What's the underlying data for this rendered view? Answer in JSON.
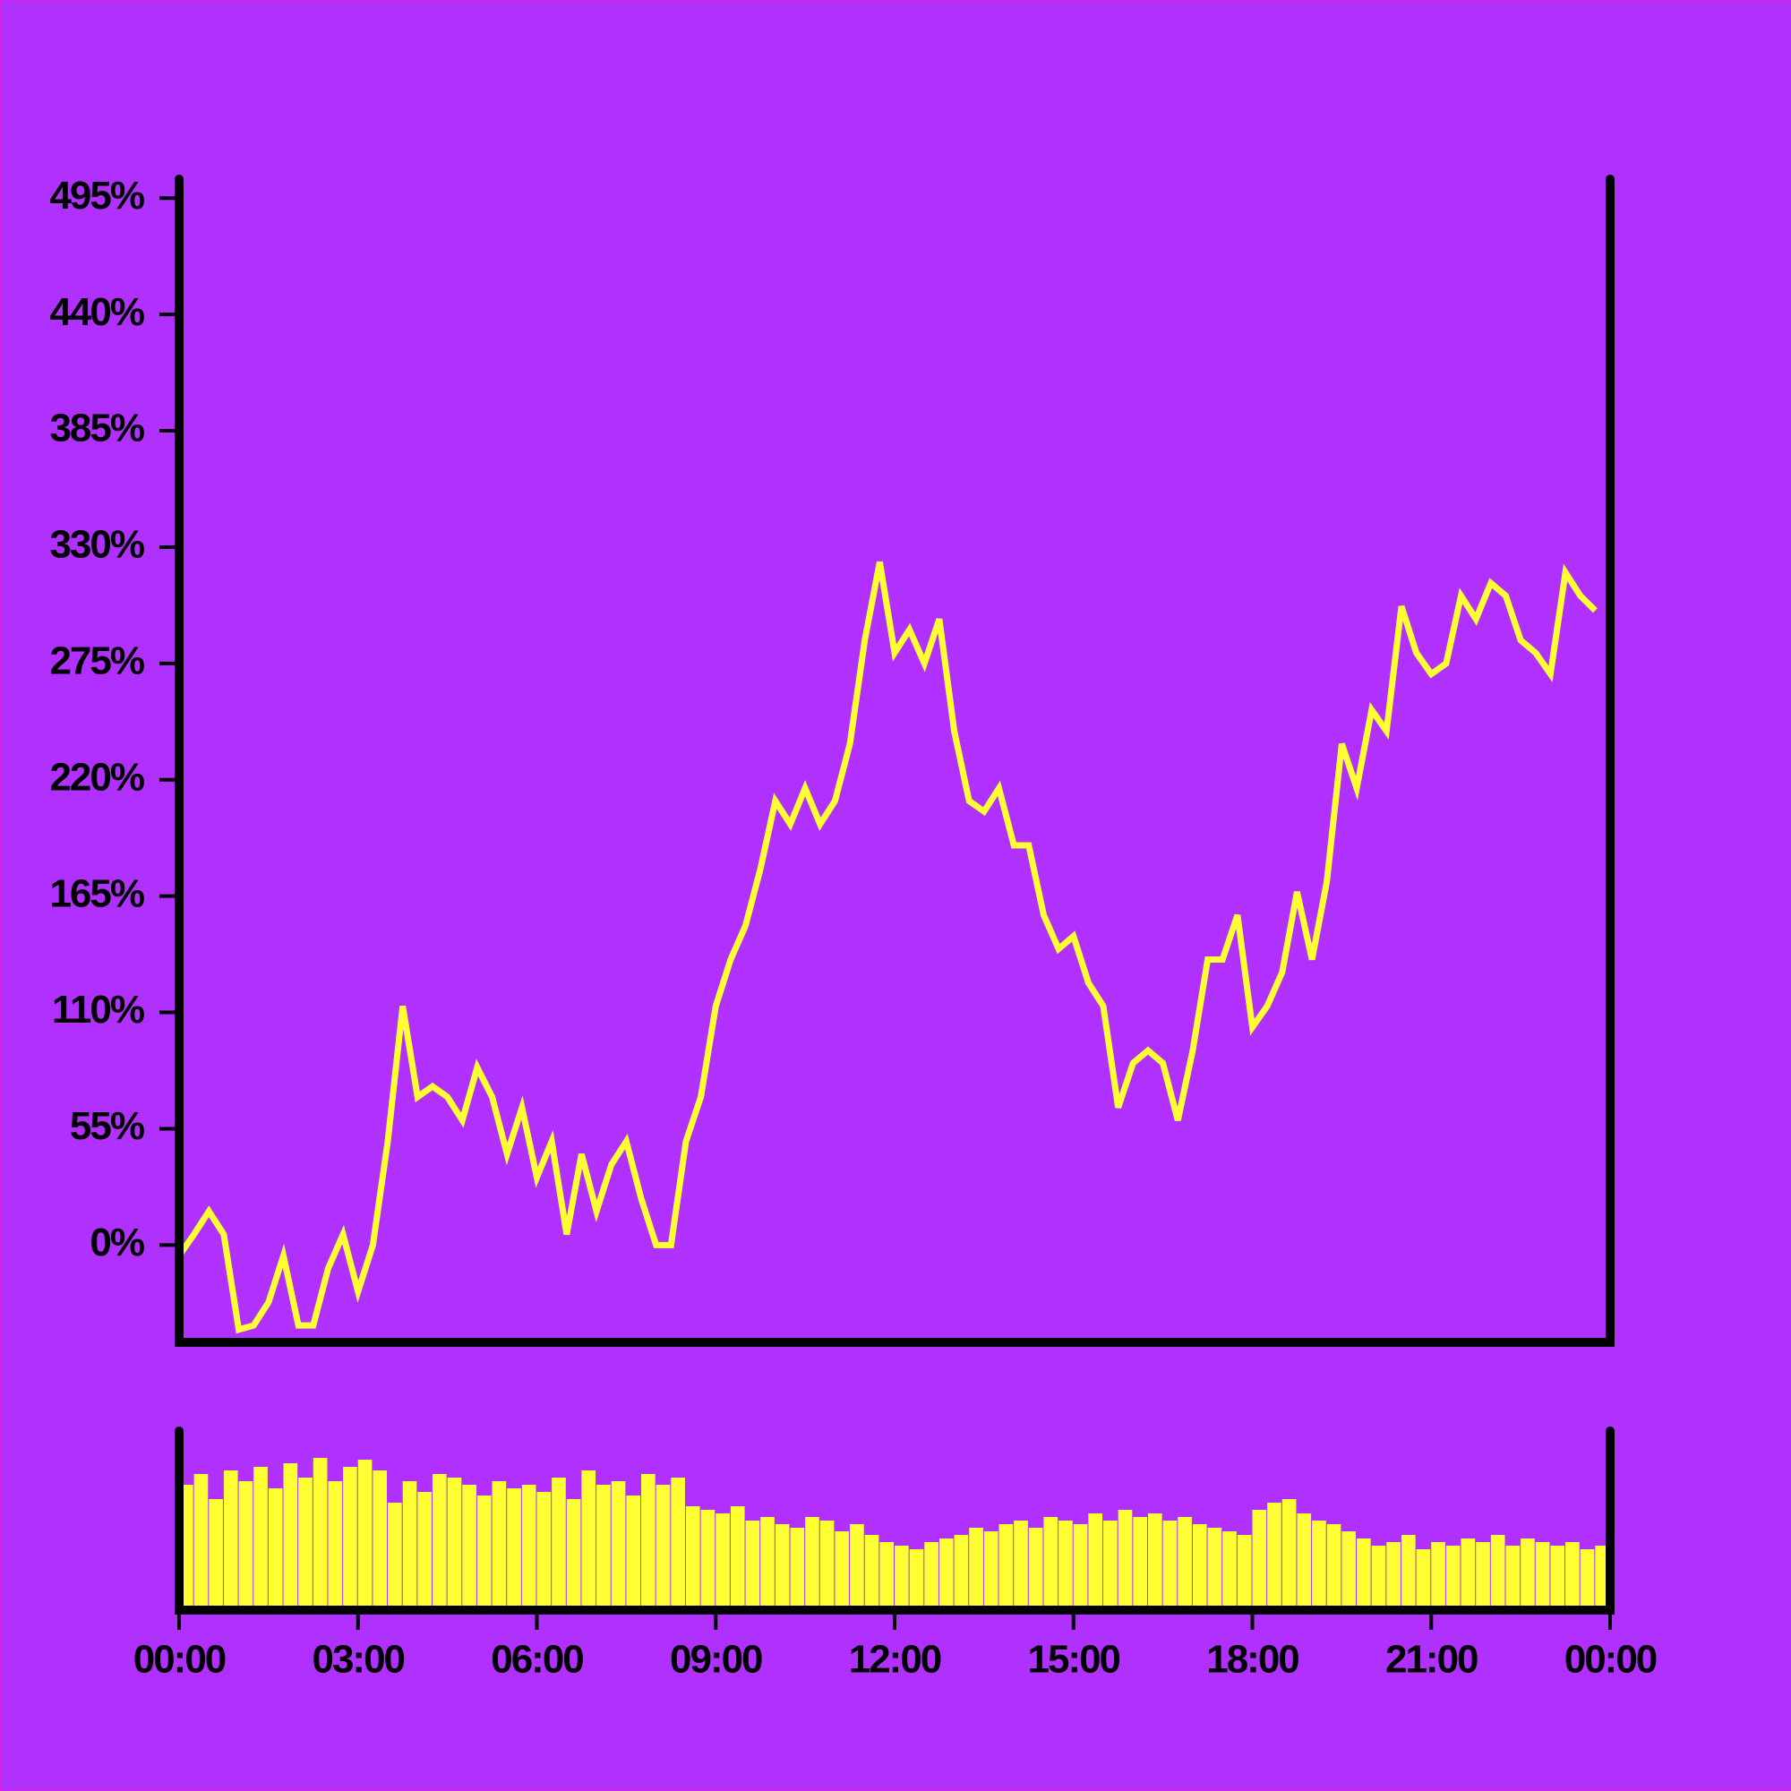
{
  "chart_data": [
    {
      "type": "line",
      "color": "#ffff33",
      "x": [
        0,
        0.25,
        0.5,
        0.75,
        1,
        1.25,
        1.5,
        1.75,
        2,
        2.25,
        2.5,
        2.75,
        3,
        3.25,
        3.5,
        3.75,
        4,
        4.25,
        4.5,
        4.75,
        5,
        5.25,
        5.5,
        5.75,
        6,
        6.25,
        6.5,
        6.75,
        7,
        7.25,
        7.5,
        7.75,
        8,
        8.25,
        8.5,
        8.75,
        9,
        9.25,
        9.5,
        9.75,
        10,
        10.25,
        10.5,
        10.75,
        11,
        11.25,
        11.5,
        11.75,
        12,
        12.25,
        12.5,
        12.75,
        13,
        13.25,
        13.5,
        13.75,
        14,
        14.25,
        14.5,
        14.75,
        15,
        15.25,
        15.5,
        15.75,
        16,
        16.25,
        16.5,
        16.75,
        17,
        17.25,
        17.5,
        17.75,
        18,
        18.25,
        18.5,
        18.75,
        19,
        19.25,
        19.5,
        19.75,
        20,
        20.25,
        20.5,
        20.75,
        21,
        21.25,
        21.5,
        21.75,
        22,
        22.25,
        22.5,
        22.75,
        23,
        23.25,
        23.5,
        23.75
      ],
      "values": [
        -5,
        5,
        16,
        5,
        -40,
        -38,
        -27,
        -5,
        -38,
        -38,
        -11,
        5,
        -22,
        0,
        49,
        113,
        70,
        75,
        70,
        59,
        84,
        70,
        43,
        65,
        32,
        49,
        5,
        43,
        16,
        38,
        49,
        22,
        0,
        0,
        49,
        70,
        113,
        135,
        151,
        178,
        210,
        199,
        216,
        199,
        210,
        237,
        286,
        323,
        280,
        291,
        275,
        296,
        243,
        210,
        205,
        216,
        189,
        189,
        156,
        140,
        146,
        124,
        113,
        65,
        86,
        92,
        86,
        59,
        92,
        135,
        135,
        156,
        103,
        113,
        129,
        167,
        135,
        172,
        237,
        216,
        253,
        243,
        302,
        280,
        270,
        275,
        307,
        296,
        313,
        307,
        286,
        280,
        270,
        318,
        307,
        300
      ],
      "xlim": [
        0,
        24
      ],
      "ylim": [
        -46,
        504
      ],
      "yticks": [
        {
          "value": 0,
          "label": "0%"
        },
        {
          "value": 55,
          "label": "55%"
        },
        {
          "value": 110,
          "label": "110%"
        },
        {
          "value": 165,
          "label": "165%"
        },
        {
          "value": 220,
          "label": "220%"
        },
        {
          "value": 275,
          "label": "275%"
        },
        {
          "value": 330,
          "label": "330%"
        },
        {
          "value": 385,
          "label": "385%"
        },
        {
          "value": 440,
          "label": "440%"
        },
        {
          "value": 495,
          "label": "495%"
        }
      ]
    },
    {
      "type": "bar",
      "color": "#ffff33",
      "x": [
        0,
        0.25,
        0.5,
        0.75,
        1,
        1.25,
        1.5,
        1.75,
        2,
        2.25,
        2.5,
        2.75,
        3,
        3.25,
        3.5,
        3.75,
        4,
        4.25,
        4.5,
        4.75,
        5,
        5.25,
        5.5,
        5.75,
        6,
        6.25,
        6.5,
        6.75,
        7,
        7.25,
        7.5,
        7.75,
        8,
        8.25,
        8.5,
        8.75,
        9,
        9.25,
        9.5,
        9.75,
        10,
        10.25,
        10.5,
        10.75,
        11,
        11.25,
        11.5,
        11.75,
        12,
        12.25,
        12.5,
        12.75,
        13,
        13.25,
        13.5,
        13.75,
        14,
        14.25,
        14.5,
        14.75,
        15,
        15.25,
        15.5,
        15.75,
        16,
        16.25,
        16.5,
        16.75,
        17,
        17.25,
        17.5,
        17.75,
        18,
        18.25,
        18.5,
        18.75,
        19,
        19.25,
        19.5,
        19.75,
        20,
        20.25,
        20.5,
        20.75,
        21,
        21.25,
        21.5,
        21.75,
        22,
        22.25,
        22.5,
        22.75,
        23,
        23.25,
        23.5,
        23.75
      ],
      "values": [
        70,
        76,
        62,
        78,
        72,
        80,
        68,
        82,
        74,
        85,
        72,
        80,
        84,
        78,
        60,
        72,
        66,
        76,
        74,
        70,
        64,
        72,
        68,
        70,
        66,
        74,
        62,
        78,
        70,
        72,
        64,
        76,
        70,
        74,
        58,
        56,
        54,
        58,
        50,
        52,
        48,
        46,
        52,
        50,
        44,
        48,
        42,
        38,
        36,
        34,
        38,
        40,
        42,
        46,
        44,
        48,
        50,
        46,
        52,
        50,
        48,
        54,
        50,
        56,
        52,
        54,
        50,
        52,
        48,
        46,
        44,
        42,
        56,
        60,
        62,
        54,
        50,
        48,
        44,
        40,
        36,
        38,
        42,
        34,
        38,
        36,
        40,
        38,
        42,
        36,
        40,
        38,
        36,
        38,
        34,
        36
      ],
      "xlim": [
        0,
        24
      ],
      "ylim": [
        0,
        100
      ],
      "xticks": [
        {
          "value": 0,
          "label": "00:00"
        },
        {
          "value": 3,
          "label": "03:00"
        },
        {
          "value": 6,
          "label": "06:00"
        },
        {
          "value": 9,
          "label": "09:00"
        },
        {
          "value": 12,
          "label": "12:00"
        },
        {
          "value": 15,
          "label": "15:00"
        },
        {
          "value": 18,
          "label": "18:00"
        },
        {
          "value": 21,
          "label": "21:00"
        },
        {
          "value": 24,
          "label": "00:00"
        }
      ]
    }
  ]
}
